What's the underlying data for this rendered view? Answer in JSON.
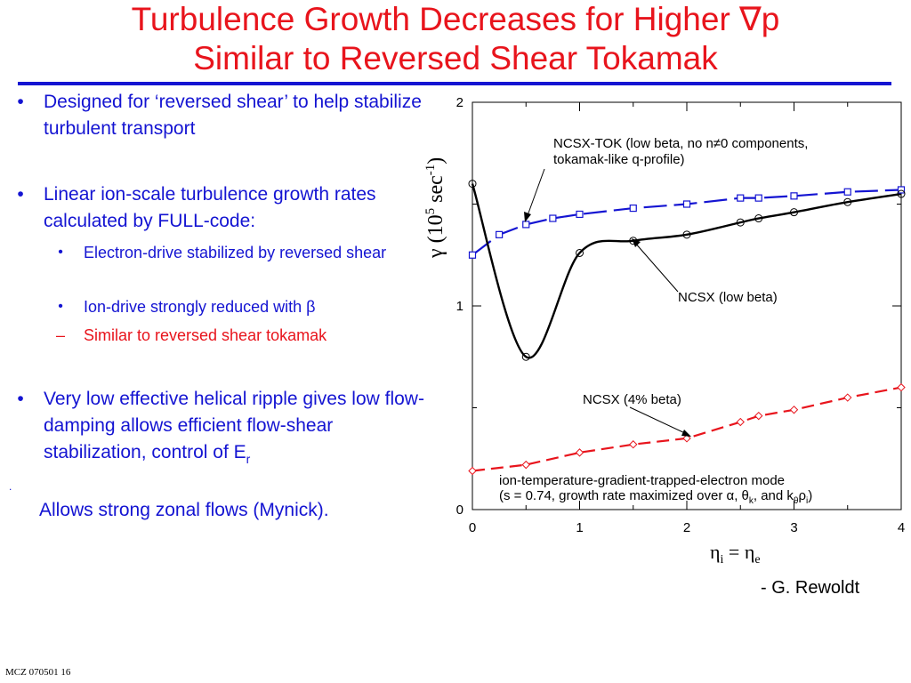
{
  "title": {
    "line1": "Turbulence Growth Decreases for Higher ∇p",
    "line2": "Similar to Reversed Shear Tokamak"
  },
  "bullets": [
    {
      "text": "Designed for ‘reversed shear’ to help stabilize turbulent transport"
    },
    {
      "text": "Linear ion-scale turbulence growth rates calculated by FULL-code:"
    },
    {
      "text": "Electron-drive stabilized by reversed shear"
    },
    {
      "text": "Ion-drive strongly reduced with β"
    },
    {
      "text": "Similar to reversed shear tokamak"
    },
    {
      "text": "Very low effective helical ripple gives low flow-damping allows efficient flow-shear stabilization, control of E",
      "subscript": "r"
    }
  ],
  "stray_mark": ".",
  "zonal_text": "Allows strong zonal flows (Mynick).",
  "credit": "- G. Rewoldt",
  "footer": "MCZ 070501  16",
  "colors": {
    "title": "#e8141c",
    "body": "#1414d2",
    "tok_series": "#1414d2",
    "ncsx_series": "#000000",
    "beta_series": "#e8141c"
  },
  "chart_data": {
    "type": "line",
    "xlabel": "ηi = ηe",
    "ylabel": "γ (10^5 sec^-1)",
    "xlim": [
      0,
      4
    ],
    "ylim": [
      0,
      2
    ],
    "x_ticks": [
      "0",
      "1",
      "2",
      "3",
      "4"
    ],
    "y_ticks": [
      "0",
      "1",
      "2"
    ],
    "series": [
      {
        "name": "NCSX-TOK (low beta, no n≠0 components, tokamak-like q-profile)",
        "marker": "square",
        "x": [
          0,
          0.25,
          0.5,
          0.75,
          1,
          1.5,
          2,
          2.5,
          2.67,
          3,
          3.5,
          4
        ],
        "y": [
          1.25,
          1.35,
          1.4,
          1.43,
          1.45,
          1.48,
          1.5,
          1.53,
          1.53,
          1.54,
          1.56,
          1.57
        ]
      },
      {
        "name": "NCSX (low beta)",
        "marker": "circle",
        "x": [
          0,
          0.5,
          1,
          1.5,
          2,
          2.5,
          2.67,
          3,
          3.5,
          4
        ],
        "y": [
          1.6,
          0.75,
          1.26,
          1.32,
          1.35,
          1.41,
          1.43,
          1.46,
          1.51,
          1.55
        ]
      },
      {
        "name": "NCSX (4% beta)",
        "marker": "diamond",
        "x": [
          0,
          0.5,
          1,
          1.5,
          2,
          2.5,
          2.67,
          3,
          3.5,
          4
        ],
        "y": [
          0.19,
          0.22,
          0.28,
          0.32,
          0.35,
          0.43,
          0.46,
          0.49,
          0.55,
          0.6
        ]
      }
    ],
    "annotations": [
      "NCSX-TOK (low beta, no n≠0 components,",
      "tokamak-like q-profile)",
      "NCSX (low beta)",
      "NCSX (4% beta)",
      "ion-temperature-gradient-trapped-electron mode",
      "(s = 0.74, growth rate maximized over α, θk, and kθρi)"
    ]
  }
}
